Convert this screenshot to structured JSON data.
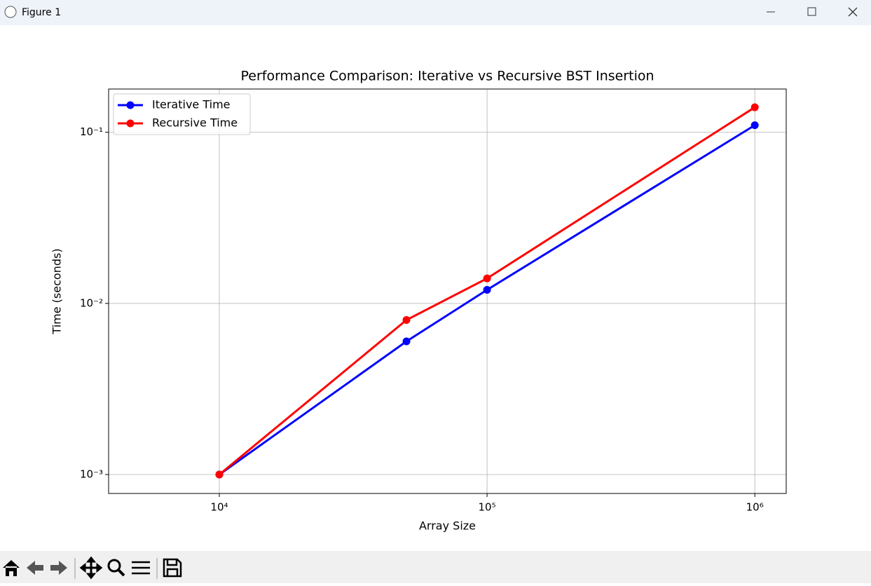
{
  "window": {
    "title": "Figure 1"
  },
  "chart_data": {
    "type": "line",
    "title": "Performance Comparison: Iterative vs Recursive BST Insertion",
    "x_label": "Array Size",
    "y_label": "Time (seconds)",
    "x": [
      10000,
      50000,
      100000,
      1000000
    ],
    "series": [
      {
        "name": "Iterative Time",
        "color": "#0000ff",
        "values": [
          0.001,
          0.006,
          0.012,
          0.11
        ]
      },
      {
        "name": "Recursive Time",
        "color": "#ff0000",
        "values": [
          0.001,
          0.008,
          0.014,
          0.14
        ]
      }
    ],
    "xlog": true,
    "ylog": true,
    "xlim": [
      3860,
      1310000
    ],
    "ylim": [
      0.000775,
      0.179
    ],
    "xticks": [
      {
        "value": 10000,
        "label": "10⁴"
      },
      {
        "value": 100000,
        "label": "10⁵"
      },
      {
        "value": 1000000,
        "label": "10⁶"
      }
    ],
    "yticks": [
      {
        "value": 0.001,
        "label": "10⁻³"
      },
      {
        "value": 0.01,
        "label": "10⁻²"
      },
      {
        "value": 0.1,
        "label": "10⁻¹"
      }
    ],
    "grid": true,
    "legend": "upper left"
  }
}
